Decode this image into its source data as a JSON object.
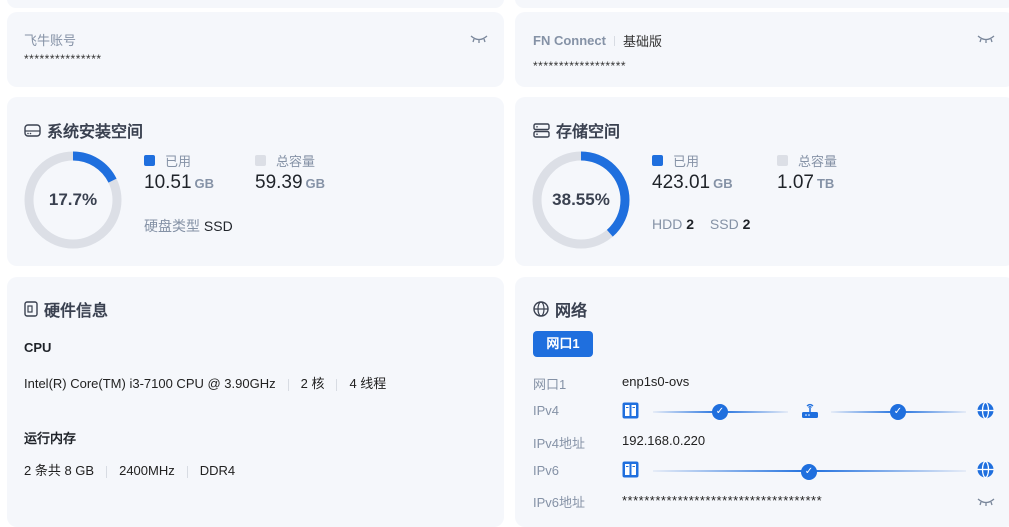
{
  "account": {
    "label": "飞牛账号",
    "value": "***************"
  },
  "connect": {
    "label": "FN Connect",
    "edition": "基础版",
    "value": "******************"
  },
  "system_space": {
    "title": "系统安装空间",
    "percent_text": "17.7%",
    "percent": 17.7,
    "used_label": "已用",
    "used_value": "10.51",
    "used_unit": "GB",
    "total_label": "总容量",
    "total_value": "59.39",
    "total_unit": "GB",
    "disk_type_label": "硬盘类型",
    "disk_type": "SSD"
  },
  "storage": {
    "title": "存储空间",
    "percent_text": "38.55%",
    "percent": 38.55,
    "used_label": "已用",
    "used_value": "423.01",
    "used_unit": "GB",
    "total_label": "总容量",
    "total_value": "1.07",
    "total_unit": "TB",
    "hdd_label": "HDD",
    "hdd_count": "2",
    "ssd_label": "SSD",
    "ssd_count": "2"
  },
  "hardware": {
    "title": "硬件信息",
    "cpu_label": "CPU",
    "cpu_model": "Intel(R) Core(TM) i3-7100 CPU @ 3.90GHz",
    "cores": "2 核",
    "threads": "4 线程",
    "mem_label": "运行内存",
    "mem_size": "2 条共 8 GB",
    "mem_speed": "2400MHz",
    "mem_type": "DDR4"
  },
  "network": {
    "title": "网络",
    "tab": "网口1",
    "rows": {
      "port_label": "网口1",
      "port_value": "enp1s0-ovs",
      "ipv4_label": "IPv4",
      "ipv4_addr_label": "IPv4地址",
      "ipv4_addr": "192.168.0.220",
      "ipv6_label": "IPv6",
      "ipv6_addr_label": "IPv6地址",
      "ipv6_addr": "************************************"
    }
  },
  "colors": {
    "accent": "#1f6fde",
    "track": "#dcdfe6",
    "card": "#f5f7fb"
  }
}
